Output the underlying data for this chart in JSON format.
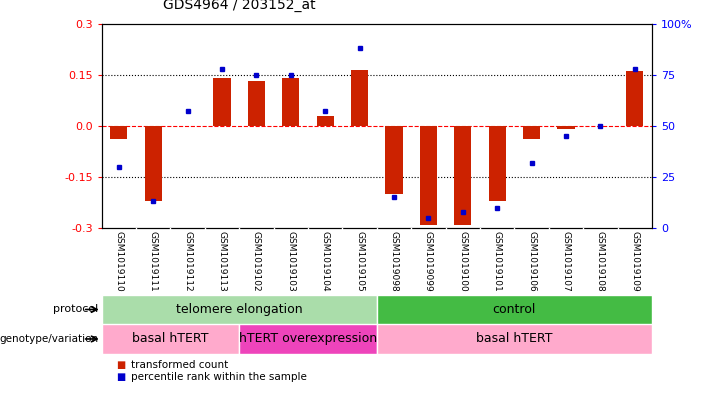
{
  "title": "GDS4964 / 203152_at",
  "samples": [
    "GSM1019110",
    "GSM1019111",
    "GSM1019112",
    "GSM1019113",
    "GSM1019102",
    "GSM1019103",
    "GSM1019104",
    "GSM1019105",
    "GSM1019098",
    "GSM1019099",
    "GSM1019100",
    "GSM1019101",
    "GSM1019106",
    "GSM1019107",
    "GSM1019108",
    "GSM1019109"
  ],
  "transformed_count": [
    -0.04,
    -0.22,
    0.0,
    0.14,
    0.13,
    0.14,
    0.03,
    0.165,
    -0.2,
    -0.29,
    -0.29,
    -0.22,
    -0.04,
    -0.01,
    0.0,
    0.16
  ],
  "percentile_rank": [
    30,
    13,
    57,
    78,
    75,
    75,
    57,
    88,
    15,
    5,
    8,
    10,
    32,
    45,
    50,
    78
  ],
  "ylim": [
    -0.3,
    0.3
  ],
  "yticks_left": [
    -0.3,
    -0.15,
    0.0,
    0.15,
    0.3
  ],
  "yticks_right": [
    0,
    25,
    50,
    75,
    100
  ],
  "protocol_groups": [
    {
      "label": "telomere elongation",
      "start": 0,
      "end": 8,
      "color": "#aaddaa"
    },
    {
      "label": "control",
      "start": 8,
      "end": 16,
      "color": "#44bb44"
    }
  ],
  "genotype_groups": [
    {
      "label": "basal hTERT",
      "start": 0,
      "end": 4,
      "color": "#ffaacc"
    },
    {
      "label": "hTERT overexpression",
      "start": 4,
      "end": 8,
      "color": "#ee44bb"
    },
    {
      "label": "basal hTERT",
      "start": 8,
      "end": 16,
      "color": "#ffaacc"
    }
  ],
  "bar_color": "#CC2200",
  "dot_color": "#0000CC",
  "zero_line_color": "#FF0000",
  "bg_color": "#FFFFFF",
  "col_bg": "#CCCCCC",
  "legend_items": [
    {
      "label": "transformed count",
      "color": "#CC2200"
    },
    {
      "label": "percentile rank within the sample",
      "color": "#0000CC"
    }
  ]
}
